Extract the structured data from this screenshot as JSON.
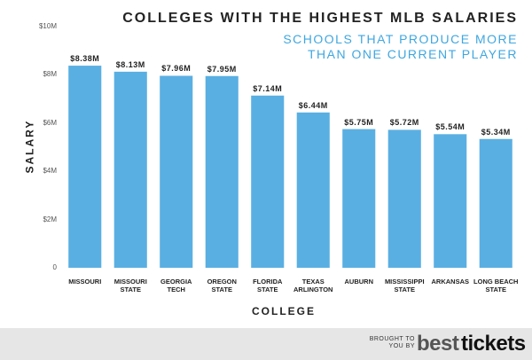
{
  "chart_data": {
    "type": "bar",
    "title": "COLLEGES WITH THE HIGHEST MLB SALARIES",
    "subtitle": "SCHOOLS THAT PRODUCE MORE\nTHAN ONE CURRENT PLAYER",
    "x_label": "COLLEGE",
    "y_label": "SALARY",
    "categories": [
      "MISSOURI",
      "MISSOURI\nSTATE",
      "GEORGIA\nTECH",
      "OREGON\nSTATE",
      "FLORIDA\nSTATE",
      "TEXAS\nARLINGTON",
      "AUBURN",
      "MISSISSIPPI\nSTATE",
      "ARKANSAS",
      "LONG BEACH\nSTATE"
    ],
    "values": [
      8.38,
      8.13,
      7.96,
      7.95,
      7.14,
      6.44,
      5.75,
      5.72,
      5.54,
      5.34
    ],
    "value_labels": [
      "$8.38M",
      "$8.13M",
      "$7.96M",
      "$7.95M",
      "$7.14M",
      "$6.44M",
      "$5.75M",
      "$5.72M",
      "$5.54M",
      "$5.34M"
    ],
    "color": "#5aafe2",
    "ylim": [
      0,
      10
    ],
    "yticks": [
      0,
      {
        "value": 2,
        "label": "$2M"
      },
      {
        "value": 4,
        "label": "$4M"
      },
      {
        "value": 6,
        "label": "$6M"
      },
      {
        "value": 8,
        "label": "$8M"
      },
      {
        "value": 10,
        "label": "$10M"
      }
    ]
  },
  "footer": {
    "text": "BROUGHT TO\nYOU BY",
    "logo_part1": "best",
    "logo_part2": "tickets"
  }
}
